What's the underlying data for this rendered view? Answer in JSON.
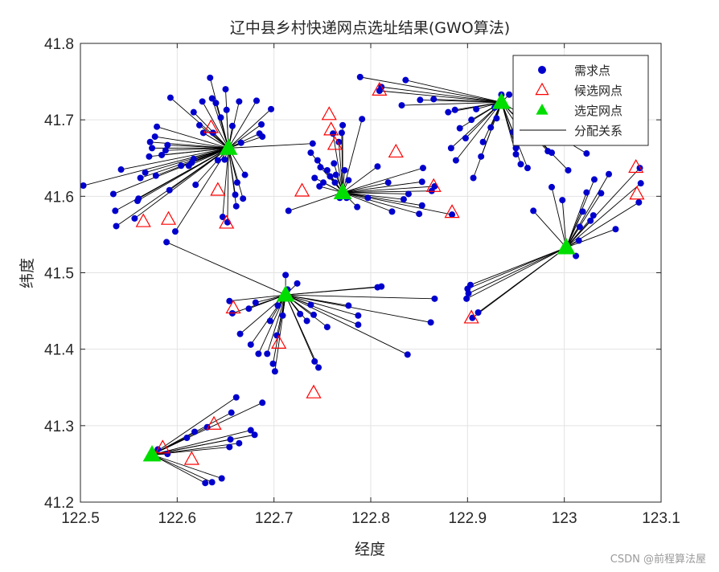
{
  "watermark": "CSDN @前程算法屋",
  "chart_data": {
    "type": "scatter",
    "title": "辽中县乡村快递网点选址结果(GWO算法)",
    "xlabel": "经度",
    "ylabel": "纬度",
    "xlim": [
      122.5,
      123.1
    ],
    "ylim": [
      41.2,
      41.8
    ],
    "xticks": [
      122.5,
      122.6,
      122.7,
      122.8,
      122.9,
      123,
      123.1
    ],
    "yticks": [
      41.2,
      41.3,
      41.4,
      41.5,
      41.6,
      41.7,
      41.8
    ],
    "xtick_labels": [
      "122.5",
      "122.6",
      "122.7",
      "122.8",
      "122.9",
      "123",
      "123.1"
    ],
    "ytick_labels": [
      "41.2",
      "41.3",
      "41.4",
      "41.5",
      "41.6",
      "41.7",
      "41.8"
    ],
    "grid": true,
    "legend_position": "top-right",
    "legend": [
      "需求点",
      "候选网点",
      "选定网点",
      "分配关系"
    ],
    "colors": {
      "demand": "#0000cd",
      "candidate": "#ff0000",
      "selected": "#00dd00",
      "assignment": "#000000"
    },
    "selected_sites": [
      {
        "x": 122.653,
        "y": 41.663
      },
      {
        "x": 122.771,
        "y": 41.605
      },
      {
        "x": 122.935,
        "y": 41.723
      },
      {
        "x": 123.002,
        "y": 41.533
      },
      {
        "x": 122.712,
        "y": 41.471
      },
      {
        "x": 122.574,
        "y": 41.262
      }
    ],
    "candidate_sites": [
      [
        122.565,
        41.567
      ],
      [
        122.591,
        41.57
      ],
      [
        122.642,
        41.608
      ],
      [
        122.651,
        41.565
      ],
      [
        122.635,
        41.69
      ],
      [
        122.658,
        41.454
      ],
      [
        122.705,
        41.408
      ],
      [
        122.741,
        41.343
      ],
      [
        122.638,
        41.302
      ],
      [
        122.615,
        41.256
      ],
      [
        122.585,
        41.271
      ],
      [
        122.729,
        41.607
      ],
      [
        122.757,
        41.707
      ],
      [
        122.759,
        41.687
      ],
      [
        122.763,
        41.668
      ],
      [
        122.826,
        41.658
      ],
      [
        122.809,
        41.739
      ],
      [
        122.865,
        41.613
      ],
      [
        122.884,
        41.579
      ],
      [
        122.904,
        41.441
      ],
      [
        123.074,
        41.638
      ],
      [
        123.075,
        41.603
      ],
      [
        122.771,
        41.605
      ]
    ],
    "demand_groups": [
      {
        "center_index": 0,
        "points": [
          [
            122.503,
            41.614
          ],
          [
            122.534,
            41.603
          ],
          [
            122.542,
            41.635
          ],
          [
            122.536,
            41.581
          ],
          [
            122.537,
            41.561
          ],
          [
            122.556,
            41.571
          ],
          [
            122.559,
            41.594
          ],
          [
            122.56,
            41.597
          ],
          [
            122.562,
            41.624
          ],
          [
            122.567,
            41.631
          ],
          [
            122.571,
            41.652
          ],
          [
            122.572,
            41.671
          ],
          [
            122.574,
            41.663
          ],
          [
            122.577,
            41.678
          ],
          [
            122.579,
            41.691
          ],
          [
            122.578,
            41.627
          ],
          [
            122.584,
            41.654
          ],
          [
            122.588,
            41.66
          ],
          [
            122.59,
            41.667
          ],
          [
            122.592,
            41.608
          ],
          [
            122.593,
            41.729
          ],
          [
            122.598,
            41.554
          ],
          [
            122.604,
            41.64
          ],
          [
            122.612,
            41.64
          ],
          [
            122.615,
            41.644
          ],
          [
            122.617,
            41.649
          ],
          [
            122.617,
            41.71
          ],
          [
            122.619,
            41.615
          ],
          [
            122.623,
            41.693
          ],
          [
            122.626,
            41.724
          ],
          [
            122.627,
            41.683
          ],
          [
            122.634,
            41.755
          ],
          [
            122.636,
            41.728
          ],
          [
            122.637,
            41.683
          ],
          [
            122.64,
            41.722
          ],
          [
            122.642,
            41.647
          ],
          [
            122.645,
            41.703
          ],
          [
            122.647,
            41.573
          ],
          [
            122.649,
            41.648
          ],
          [
            122.65,
            41.74
          ],
          [
            122.651,
            41.713
          ],
          [
            122.652,
            41.566
          ],
          [
            122.657,
            41.692
          ],
          [
            122.66,
            41.602
          ],
          [
            122.661,
            41.587
          ],
          [
            122.662,
            41.618
          ],
          [
            122.664,
            41.724
          ],
          [
            122.666,
            41.67
          ],
          [
            122.668,
            41.597
          ],
          [
            122.67,
            41.628
          ],
          [
            122.682,
            41.725
          ],
          [
            122.685,
            41.682
          ],
          [
            122.687,
            41.694
          ],
          [
            122.688,
            41.678
          ],
          [
            122.697,
            41.714
          ],
          [
            122.74,
            41.669
          ]
        ]
      },
      {
        "center_index": 1,
        "points": [
          [
            122.715,
            41.581
          ],
          [
            122.738,
            41.657
          ],
          [
            122.742,
            41.624
          ],
          [
            122.745,
            41.647
          ],
          [
            122.747,
            41.613
          ],
          [
            122.748,
            41.638
          ],
          [
            122.751,
            41.618
          ],
          [
            122.755,
            41.634
          ],
          [
            122.758,
            41.626
          ],
          [
            122.761,
            41.682
          ],
          [
            122.762,
            41.643
          ],
          [
            122.763,
            41.618
          ],
          [
            122.764,
            41.628
          ],
          [
            122.767,
            41.671
          ],
          [
            122.768,
            41.598
          ],
          [
            122.77,
            41.683
          ],
          [
            122.771,
            41.693
          ],
          [
            122.773,
            41.634
          ],
          [
            122.775,
            41.598
          ],
          [
            122.777,
            41.621
          ],
          [
            122.786,
            41.586
          ],
          [
            122.791,
            41.701
          ],
          [
            122.797,
            41.598
          ],
          [
            122.807,
            41.639
          ],
          [
            122.818,
            41.618
          ],
          [
            122.822,
            41.58
          ],
          [
            122.834,
            41.596
          ],
          [
            122.839,
            41.603
          ],
          [
            122.85,
            41.577
          ],
          [
            122.853,
            41.619
          ],
          [
            122.853,
            41.588
          ],
          [
            122.854,
            41.637
          ],
          [
            122.863,
            41.607
          ],
          [
            122.866,
            41.613
          ],
          [
            122.884,
            41.576
          ]
        ]
      },
      {
        "center_index": 2,
        "points": [
          [
            122.789,
            41.756
          ],
          [
            122.809,
            41.738
          ],
          [
            122.811,
            41.743
          ],
          [
            122.832,
            41.719
          ],
          [
            122.836,
            41.752
          ],
          [
            122.851,
            41.726
          ],
          [
            122.865,
            41.727
          ],
          [
            122.88,
            41.71
          ],
          [
            122.883,
            41.663
          ],
          [
            122.887,
            41.713
          ],
          [
            122.888,
            41.647
          ],
          [
            122.892,
            41.689
          ],
          [
            122.898,
            41.676
          ],
          [
            122.904,
            41.7
          ],
          [
            122.906,
            41.624
          ],
          [
            122.909,
            41.714
          ],
          [
            122.914,
            41.652
          ],
          [
            122.916,
            41.671
          ],
          [
            122.924,
            41.69
          ],
          [
            122.928,
            41.716
          ],
          [
            122.93,
            41.702
          ],
          [
            122.935,
            41.733
          ],
          [
            122.943,
            41.733
          ],
          [
            122.947,
            41.684
          ],
          [
            122.95,
            41.655
          ],
          [
            122.95,
            41.663
          ],
          [
            122.955,
            41.642
          ],
          [
            122.957,
            41.682
          ],
          [
            122.962,
            41.637
          ],
          [
            122.983,
            41.659
          ],
          [
            122.987,
            41.657
          ],
          [
            123.004,
            41.634
          ],
          [
            123.023,
            41.656
          ]
        ]
      },
      {
        "center_index": 3,
        "points": [
          [
            122.899,
            41.466
          ],
          [
            122.9,
            41.479
          ],
          [
            122.901,
            41.473
          ],
          [
            122.903,
            41.484
          ],
          [
            122.905,
            41.441
          ],
          [
            122.911,
            41.448
          ],
          [
            122.968,
            41.581
          ],
          [
            122.987,
            41.612
          ],
          [
            122.998,
            41.595
          ],
          [
            123.012,
            41.522
          ],
          [
            123.015,
            41.542
          ],
          [
            123.016,
            41.56
          ],
          [
            123.019,
            41.58
          ],
          [
            123.023,
            41.605
          ],
          [
            123.027,
            41.568
          ],
          [
            123.03,
            41.575
          ],
          [
            123.031,
            41.622
          ],
          [
            123.038,
            41.604
          ],
          [
            123.046,
            41.629
          ],
          [
            123.053,
            41.557
          ],
          [
            123.077,
            41.592
          ],
          [
            123.078,
            41.637
          ],
          [
            123.079,
            41.617
          ]
        ]
      },
      {
        "center_index": 4,
        "points": [
          [
            122.589,
            41.54
          ],
          [
            122.654,
            41.463
          ],
          [
            122.657,
            41.447
          ],
          [
            122.665,
            41.42
          ],
          [
            122.674,
            41.453
          ],
          [
            122.676,
            41.406
          ],
          [
            122.681,
            41.461
          ],
          [
            122.684,
            41.394
          ],
          [
            122.693,
            41.394
          ],
          [
            122.696,
            41.437
          ],
          [
            122.699,
            41.381
          ],
          [
            122.701,
            41.371
          ],
          [
            122.703,
            41.418
          ],
          [
            122.704,
            41.457
          ],
          [
            122.709,
            41.444
          ],
          [
            122.712,
            41.497
          ],
          [
            122.714,
            41.478
          ],
          [
            122.724,
            41.486
          ],
          [
            122.727,
            41.446
          ],
          [
            122.734,
            41.437
          ],
          [
            122.738,
            41.458
          ],
          [
            122.741,
            41.445
          ],
          [
            122.742,
            41.384
          ],
          [
            122.746,
            41.376
          ],
          [
            122.755,
            41.429
          ],
          [
            122.777,
            41.457
          ],
          [
            122.787,
            41.444
          ],
          [
            122.787,
            41.432
          ],
          [
            122.807,
            41.481
          ],
          [
            122.811,
            41.482
          ],
          [
            122.838,
            41.393
          ],
          [
            122.862,
            41.435
          ],
          [
            122.866,
            41.466
          ]
        ]
      },
      {
        "center_index": 5,
        "points": [
          [
            122.58,
            41.269
          ],
          [
            122.59,
            41.263
          ],
          [
            122.61,
            41.284
          ],
          [
            122.618,
            41.292
          ],
          [
            122.629,
            41.225
          ],
          [
            122.631,
            41.298
          ],
          [
            122.636,
            41.226
          ],
          [
            122.646,
            41.231
          ],
          [
            122.654,
            41.272
          ],
          [
            122.655,
            41.282
          ],
          [
            122.656,
            41.317
          ],
          [
            122.661,
            41.337
          ],
          [
            122.664,
            41.277
          ],
          [
            122.676,
            41.294
          ],
          [
            122.68,
            41.288
          ],
          [
            122.688,
            41.33
          ]
        ]
      }
    ]
  }
}
